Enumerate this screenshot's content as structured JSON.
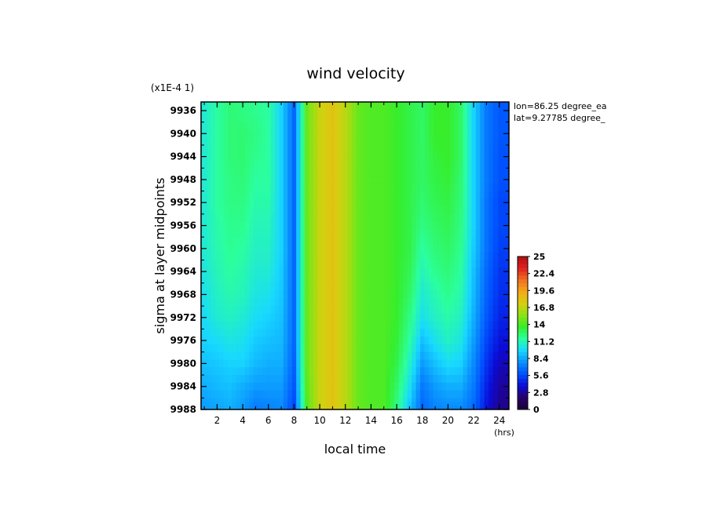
{
  "chart_data": {
    "type": "heatmap",
    "title": "wind velocity",
    "xlabel": "local time",
    "ylabel": "sigma at layer midpoints",
    "x_units": "(hrs)",
    "y_scale_note": "(x1E-4 1)",
    "annotations": [
      "lon=86.25 degree_ea",
      "lat=9.27785 degree_"
    ],
    "xlim": [
      0.75,
      24.75
    ],
    "ylim": [
      9934.5,
      9988
    ],
    "x_ticks": [
      2,
      4,
      6,
      8,
      10,
      12,
      14,
      16,
      18,
      20,
      22,
      24
    ],
    "y_ticks": [
      9936,
      9940,
      9944,
      9948,
      9952,
      9956,
      9960,
      9964,
      9968,
      9972,
      9976,
      9980,
      9984,
      9988
    ],
    "y_inverted": true,
    "colorbar": {
      "min": 0,
      "max": 25,
      "labels": [
        "25",
        "22.4",
        "19.6",
        "16.8",
        "14",
        "11.2",
        "8.4",
        "5.6",
        "2.8",
        "0"
      ],
      "colors": [
        "#1a0033",
        "#2a006a",
        "#0b0bd8",
        "#0050ff",
        "#0a90ff",
        "#18d8ff",
        "#2bff9e",
        "#36ee2c",
        "#8ee214",
        "#d4d010",
        "#f5a818",
        "#f07020",
        "#e02020",
        "#b01010"
      ]
    },
    "x": [
      1,
      2,
      3,
      4,
      5,
      6,
      7,
      8,
      9,
      10,
      11,
      12,
      13,
      14,
      15,
      16,
      17,
      18,
      19,
      20,
      21,
      22,
      23,
      24
    ],
    "sigma": [
      9936,
      9940,
      9944,
      9948,
      9952,
      9956,
      9960,
      9964,
      9968,
      9972,
      9976,
      9980,
      9984,
      9988
    ],
    "values": [
      [
        10.5,
        11.5,
        12.2,
        12.0,
        11.8,
        11.5,
        9.5,
        6.5,
        14.5,
        17.0,
        18.0,
        16.5,
        14.5,
        14.0,
        14.0,
        13.5,
        13.0,
        12.5,
        13.5,
        13.5,
        12.5,
        9.5,
        7.0,
        6.0
      ],
      [
        10.5,
        11.5,
        12.2,
        12.3,
        12.0,
        11.5,
        9.5,
        6.5,
        14.5,
        17.0,
        18.0,
        16.5,
        14.5,
        14.0,
        14.0,
        13.5,
        13.0,
        12.5,
        13.5,
        13.5,
        12.5,
        9.5,
        7.0,
        6.0
      ],
      [
        10.5,
        11.5,
        12.2,
        12.3,
        11.8,
        11.5,
        9.5,
        6.5,
        14.5,
        17.0,
        18.0,
        16.5,
        14.5,
        14.0,
        14.0,
        13.5,
        13.0,
        12.5,
        13.2,
        13.5,
        12.5,
        9.5,
        7.0,
        5.8
      ],
      [
        10.5,
        11.5,
        12.0,
        12.2,
        11.5,
        11.5,
        9.5,
        6.5,
        14.5,
        17.0,
        18.0,
        16.5,
        14.5,
        14.0,
        14.0,
        13.5,
        13.0,
        12.5,
        13.0,
        13.3,
        12.3,
        9.5,
        7.0,
        5.8
      ],
      [
        10.5,
        11.5,
        12.0,
        12.0,
        11.3,
        11.3,
        9.5,
        6.5,
        14.5,
        17.0,
        18.0,
        16.5,
        14.5,
        14.0,
        14.0,
        13.5,
        13.0,
        12.3,
        12.8,
        13.0,
        12.2,
        9.5,
        6.8,
        5.5
      ],
      [
        10.5,
        11.3,
        11.8,
        11.8,
        11.0,
        11.0,
        9.5,
        6.5,
        14.5,
        17.0,
        18.0,
        16.5,
        14.5,
        14.0,
        14.0,
        13.5,
        13.0,
        12.0,
        12.5,
        12.8,
        12.0,
        9.5,
        6.8,
        5.5
      ],
      [
        10.5,
        11.2,
        11.7,
        11.5,
        10.8,
        10.8,
        9.5,
        6.5,
        14.5,
        17.0,
        18.0,
        16.5,
        14.5,
        14.0,
        14.0,
        13.5,
        13.0,
        11.5,
        12.2,
        12.5,
        11.8,
        9.3,
        6.8,
        5.3
      ],
      [
        10.3,
        11.0,
        11.5,
        11.2,
        10.5,
        10.5,
        9.3,
        6.5,
        14.5,
        17.0,
        18.0,
        16.5,
        14.5,
        14.0,
        14.0,
        13.5,
        12.8,
        11.0,
        11.8,
        12.2,
        11.5,
        9.0,
        6.5,
        5.0
      ],
      [
        10.0,
        10.8,
        11.2,
        11.0,
        10.2,
        10.0,
        9.2,
        6.5,
        14.5,
        17.0,
        18.0,
        16.5,
        14.5,
        14.0,
        14.0,
        13.5,
        12.5,
        10.5,
        11.2,
        11.8,
        11.2,
        8.8,
        6.3,
        4.8
      ],
      [
        9.8,
        10.5,
        10.8,
        10.5,
        9.8,
        9.5,
        9.0,
        6.5,
        14.5,
        17.0,
        18.0,
        16.5,
        14.5,
        14.0,
        14.0,
        13.5,
        12.0,
        10.0,
        10.8,
        11.3,
        10.8,
        8.5,
        6.0,
        4.5
      ],
      [
        9.5,
        9.8,
        10.2,
        10.0,
        9.3,
        9.0,
        8.8,
        6.5,
        14.5,
        17.0,
        18.0,
        16.5,
        14.5,
        14.0,
        14.0,
        13.3,
        11.5,
        9.0,
        10.0,
        10.8,
        10.2,
        8.0,
        5.5,
        4.0
      ],
      [
        9.0,
        9.2,
        9.5,
        9.5,
        8.8,
        8.5,
        8.5,
        6.3,
        14.5,
        17.0,
        18.0,
        16.5,
        14.5,
        14.0,
        14.0,
        13.0,
        10.8,
        8.0,
        9.0,
        9.8,
        9.5,
        7.5,
        5.0,
        3.3
      ],
      [
        8.5,
        8.8,
        9.0,
        8.5,
        8.0,
        8.0,
        8.0,
        6.0,
        14.3,
        17.0,
        18.0,
        16.5,
        14.5,
        14.0,
        14.0,
        12.5,
        10.0,
        7.0,
        8.0,
        8.5,
        8.5,
        7.0,
        4.5,
        2.8
      ],
      [
        8.0,
        8.2,
        8.5,
        8.0,
        7.0,
        7.3,
        7.5,
        5.5,
        14.0,
        17.0,
        18.0,
        16.5,
        14.5,
        14.0,
        14.0,
        12.0,
        9.0,
        6.5,
        7.3,
        7.5,
        7.5,
        6.5,
        4.0,
        2.5
      ]
    ]
  }
}
